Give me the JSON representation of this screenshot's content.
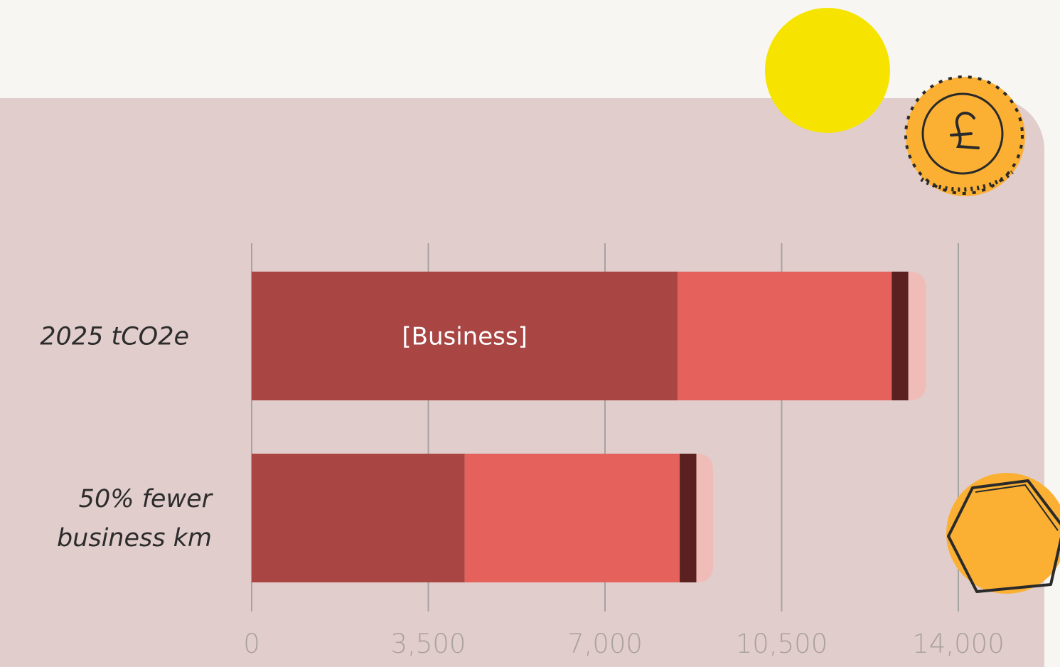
{
  "colors": {
    "background": "#f8f6f2",
    "panel": "#e1cdcb",
    "gridline": "#a7a2a2",
    "tick_text": "#a9a0a0",
    "label_text": "#2c2c2c",
    "yellow_circle": "#f6e400",
    "coin_orange": "#fbb033"
  },
  "decorations": {
    "circle": "yellow-circle",
    "coin": "pound-coin-icon",
    "hexagon": "hexagon-coin-icon"
  },
  "chart_data": {
    "type": "bar",
    "orientation": "horizontal",
    "stacked": true,
    "categories": [
      "2025 tCO2e",
      "50% fewer business km"
    ],
    "category_lines": [
      [
        "2025 tCO2e"
      ],
      [
        "50% fewer",
        "business km"
      ]
    ],
    "series": [
      {
        "color": "#a94643",
        "values": [
          8440,
          4220
        ],
        "labels": [
          "[Business]",
          ""
        ]
      },
      {
        "color": "#e4615c",
        "values": [
          4240,
          4260
        ],
        "labels": [
          "",
          ""
        ]
      },
      {
        "color": "#5a2120",
        "values": [
          330,
          330
        ],
        "labels": [
          "",
          ""
        ]
      },
      {
        "color": "#f0bcb8",
        "values": [
          350,
          330
        ],
        "labels": [
          "",
          ""
        ]
      }
    ],
    "xlim": [
      0,
      14000
    ],
    "xticks": [
      0,
      3500,
      7000,
      10500,
      14000
    ],
    "xtick_labels": [
      "0",
      "3,500",
      "7,000",
      "10,500",
      "14,000"
    ],
    "grid": true
  }
}
